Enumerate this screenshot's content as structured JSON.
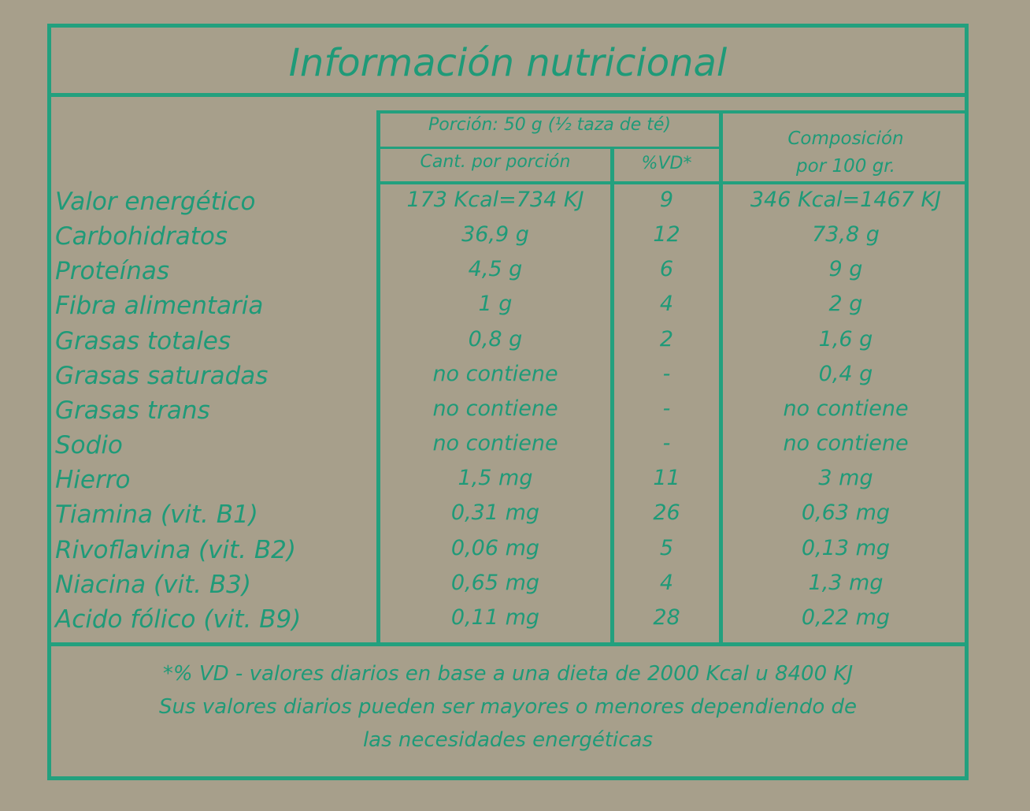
{
  "title": "Información nutricional",
  "header": {
    "portion": "Porción: 50 g (½ taza de té)",
    "amount": "Cant. por porción",
    "vd": "%VD*",
    "composition": [
      "Composición",
      "por 100 gr."
    ]
  },
  "table": {
    "rows": [
      [
        "Valor energético",
        "173 Kcal=734 KJ",
        "9",
        "346 Kcal=1467 KJ"
      ],
      [
        "Carbohidratos",
        "36,9 g",
        "12",
        "73,8 g"
      ],
      [
        "Proteínas",
        "4,5 g",
        "6",
        "9 g"
      ],
      [
        "Fibra alimentaria",
        "1 g",
        "4",
        "2 g"
      ],
      [
        "Grasas totales",
        "0,8 g",
        "2",
        "1,6 g"
      ],
      [
        "Grasas saturadas",
        "no contiene",
        "-",
        "0,4 g"
      ],
      [
        "Grasas trans",
        "no contiene",
        "-",
        "no contiene"
      ],
      [
        "Sodio",
        "no contiene",
        "-",
        "no contiene"
      ],
      [
        "Hierro",
        "1,5 mg",
        "11",
        "3 mg"
      ],
      [
        "Tiamina (vit. B1)",
        "0,31 mg",
        "26",
        "0,63 mg"
      ],
      [
        "Rivoflavina (vit. B2)",
        "0,06 mg",
        "5",
        "0,13 mg"
      ],
      [
        "Niacina (vit. B3)",
        "0,65 mg",
        "4",
        "1,3 mg"
      ],
      [
        "Acido fólico (vit. B9)",
        "0,11 mg",
        "28",
        "0,22 mg"
      ]
    ]
  },
  "footnote": [
    "*% VD - valores diarios en base a una dieta de 2000 Kcal u 8400 KJ",
    "Sus valores diarios pueden ser mayores o menores dependiendo de",
    "las necesidades energéticas"
  ]
}
